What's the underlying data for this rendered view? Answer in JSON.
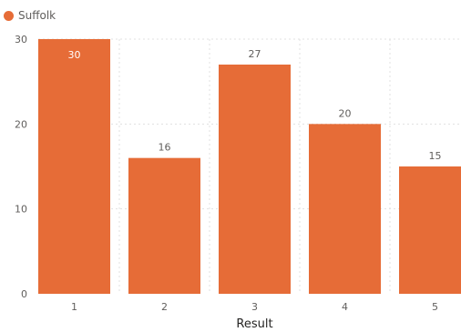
{
  "chart_data": {
    "type": "bar",
    "title": "",
    "xlabel": "Result",
    "ylabel": "",
    "categories": [
      "1",
      "2",
      "3",
      "4",
      "5"
    ],
    "series": [
      {
        "name": "Suffolk",
        "values": [
          30,
          16,
          27,
          20,
          15
        ]
      }
    ],
    "ylim": [
      0,
      30
    ],
    "yticks": [
      0,
      10,
      20,
      30
    ],
    "grid": true,
    "legend_position": "top-left",
    "data_labels": [
      "30",
      "16",
      "27",
      "20",
      "15"
    ],
    "data_label_placement": [
      "inside-end",
      "outside-end",
      "outside-end",
      "outside-end",
      "outside-end"
    ]
  },
  "colors": {
    "bar": "#E66C37",
    "grid": "#e1e1e1",
    "label_dark": "#605e5c",
    "label_light": "#ffffff"
  }
}
